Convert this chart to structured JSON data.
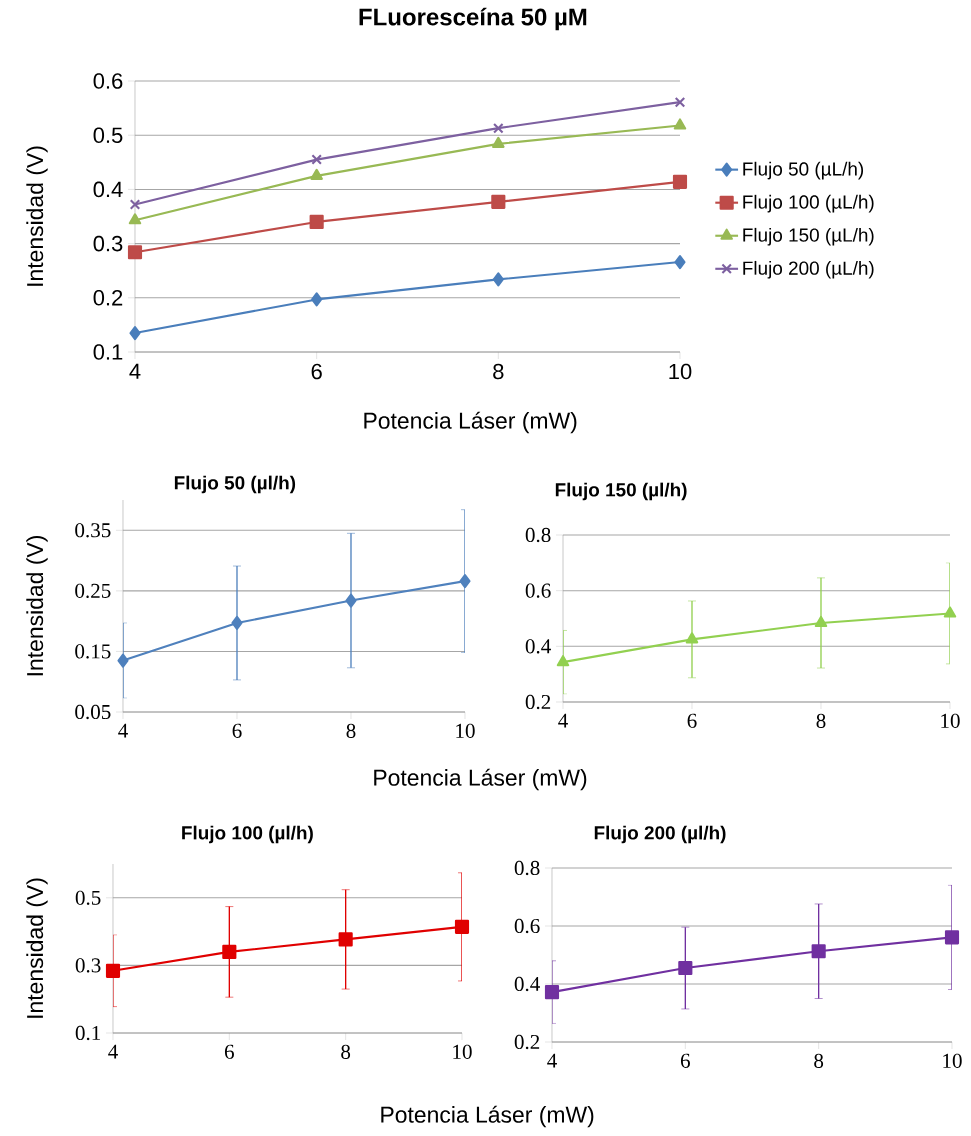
{
  "chart_data": [
    {
      "type": "line",
      "title": "FLuoresceína 50 µM",
      "xlabel": "Potencia Láser (mW)",
      "ylabel": "Intensidad (V)",
      "x": [
        4,
        6,
        8,
        10
      ],
      "xlim": [
        4,
        10
      ],
      "xticks": [
        4,
        6,
        8,
        10
      ],
      "ylim": [
        0.1,
        0.6
      ],
      "yticks": [
        0.1,
        0.2,
        0.3,
        0.4,
        0.5,
        0.6
      ],
      "grid": "y",
      "legend": "right",
      "series": [
        {
          "name": "Flujo 50 (µL/h)",
          "color": "#4a7ebb",
          "marker": "diamond",
          "values": [
            0.135,
            0.197,
            0.234,
            0.266
          ]
        },
        {
          "name": "Flujo 100 (µL/h)",
          "color": "#be4b48",
          "marker": "square",
          "values": [
            0.284,
            0.34,
            0.377,
            0.414
          ]
        },
        {
          "name": "Flujo 150 (µL/h)",
          "color": "#98b954",
          "marker": "triangle",
          "values": [
            0.343,
            0.425,
            0.484,
            0.518
          ]
        },
        {
          "name": "Flujo 200 (µL/h)",
          "color": "#7d60a0",
          "marker": "cross",
          "values": [
            0.372,
            0.455,
            0.513,
            0.561
          ]
        }
      ]
    },
    {
      "type": "line",
      "title": "Flujo 50 (µl/h)",
      "xlabel": "Potencia Láser (mW)",
      "ylabel": "Intensidad (V)",
      "x": [
        4,
        6,
        8,
        10
      ],
      "xlim": [
        4,
        10
      ],
      "xticks": [
        4,
        6,
        8,
        10
      ],
      "ylim": [
        0.05,
        0.4
      ],
      "yticks": [
        0.05,
        0.15,
        0.25,
        0.35
      ],
      "grid": "y",
      "series": [
        {
          "color": "#4f81bd",
          "marker": "diamond",
          "values": [
            0.135,
            0.197,
            0.234,
            0.266
          ],
          "errors": [
            0.062,
            0.094,
            0.111,
            0.118
          ]
        }
      ]
    },
    {
      "type": "line",
      "title": "Flujo 150 (µl/h)",
      "x": [
        4,
        6,
        8,
        10
      ],
      "xlim": [
        4,
        10
      ],
      "xticks": [
        4,
        6,
        8,
        10
      ],
      "ylim": [
        0.2,
        0.8
      ],
      "yticks": [
        0.2,
        0.4,
        0.6,
        0.8
      ],
      "grid": "y",
      "series": [
        {
          "color": "#92d050",
          "marker": "triangle",
          "values": [
            0.343,
            0.425,
            0.484,
            0.518
          ],
          "errors": [
            0.114,
            0.138,
            0.162,
            0.181
          ]
        }
      ]
    },
    {
      "type": "line",
      "title": "Flujo 100 (µl/h)",
      "xlabel": "Potencia Láser (mW)",
      "ylabel": "Intensidad (V)",
      "x": [
        4,
        6,
        8,
        10
      ],
      "xlim": [
        4,
        10
      ],
      "xticks": [
        4,
        6,
        8,
        10
      ],
      "ylim": [
        0.1,
        0.6
      ],
      "yticks": [
        0.1,
        0.3,
        0.5
      ],
      "grid": "y",
      "series": [
        {
          "color": "#e00000",
          "marker": "square",
          "values": [
            0.284,
            0.34,
            0.377,
            0.414
          ],
          "errors": [
            0.106,
            0.134,
            0.147,
            0.16
          ]
        }
      ]
    },
    {
      "type": "line",
      "title": "Flujo 200 (µl/h)",
      "x": [
        4,
        6,
        8,
        10
      ],
      "xlim": [
        4,
        10
      ],
      "xticks": [
        4,
        6,
        8,
        10
      ],
      "ylim": [
        0.2,
        0.8
      ],
      "yticks": [
        0.2,
        0.4,
        0.6,
        0.8
      ],
      "grid": "y",
      "series": [
        {
          "color": "#7030a0",
          "marker": "square",
          "values": [
            0.372,
            0.455,
            0.513,
            0.561
          ],
          "errors": [
            0.108,
            0.141,
            0.163,
            0.18
          ]
        }
      ]
    }
  ]
}
